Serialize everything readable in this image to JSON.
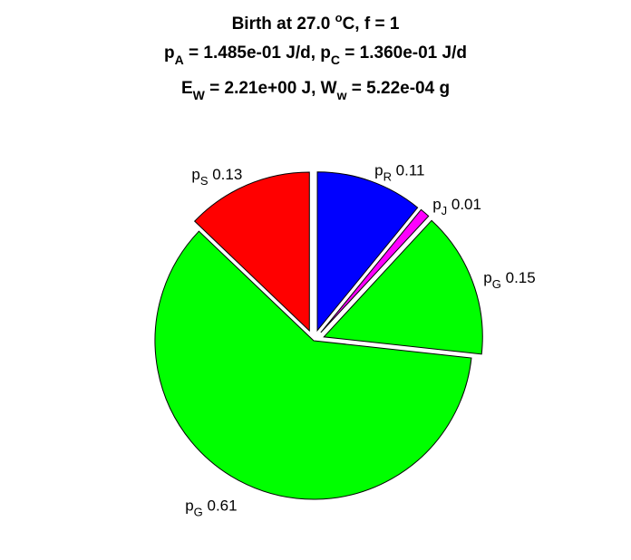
{
  "title": {
    "line1": {
      "pre": "Birth at 27.0 ",
      "sup": "o",
      "post": "C, f = 1"
    },
    "line2": {
      "p1": "p",
      "s1": "A",
      "t1": " = 1.485e-01 J/d, p",
      "s2": "C",
      "t2": " = 1.360e-01 J/d"
    },
    "line3": {
      "p1": "E",
      "s1": "W",
      "t1": " = 2.21e+00 J, W",
      "s2": "w",
      "t2": " = 5.22e-04 g"
    }
  },
  "chart_data": {
    "type": "pie",
    "start": "top",
    "direction": "clockwise",
    "exploded": [
      true,
      true,
      true,
      false,
      true
    ],
    "slices": [
      {
        "sym": "p",
        "sub": "R",
        "value": 0.11,
        "label": "0.11",
        "color": "#0000ff"
      },
      {
        "sym": "p",
        "sub": "J",
        "value": 0.01,
        "label": "0.01",
        "color": "#ff00ff"
      },
      {
        "sym": "p",
        "sub": "G",
        "value": 0.15,
        "label": "0.15",
        "color": "#00ff00"
      },
      {
        "sym": "p",
        "sub": "G",
        "value": 0.61,
        "label": "0.61",
        "color": "#00ff00"
      },
      {
        "sym": "p",
        "sub": "S",
        "value": 0.13,
        "label": "0.13",
        "color": "#ff0000"
      }
    ]
  }
}
